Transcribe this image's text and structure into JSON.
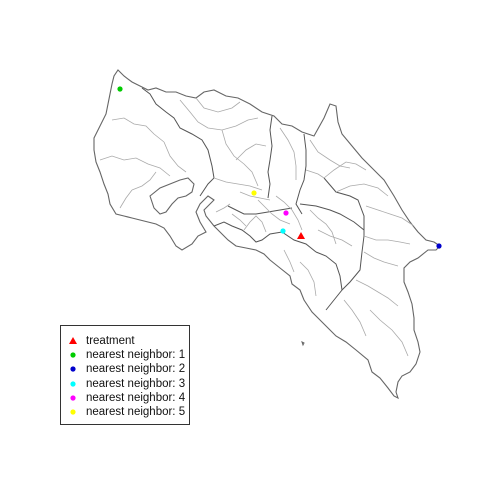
{
  "legend": {
    "items": [
      {
        "label": "treatment",
        "symbol": "triangle",
        "color": "#ff0000",
        "icon": "red-triangle-icon"
      },
      {
        "label": "nearest neighbor: 1",
        "symbol": "dot",
        "color": "#00cc00",
        "icon": "green-dot-icon"
      },
      {
        "label": "nearest neighbor: 2",
        "symbol": "dot",
        "color": "#0000cc",
        "icon": "blue-dot-icon"
      },
      {
        "label": "nearest neighbor: 3",
        "symbol": "dot",
        "color": "#00ffff",
        "icon": "cyan-dot-icon"
      },
      {
        "label": "nearest neighbor: 4",
        "symbol": "dot",
        "color": "#ff00ff",
        "icon": "magenta-dot-icon"
      },
      {
        "label": "nearest neighbor: 5",
        "symbol": "dot",
        "color": "#ffff00",
        "icon": "yellow-dot-icon"
      }
    ]
  },
  "colors": {
    "outline": "#666666",
    "internal_borders": "#aaaaaa",
    "province_borders": "#555555"
  }
}
